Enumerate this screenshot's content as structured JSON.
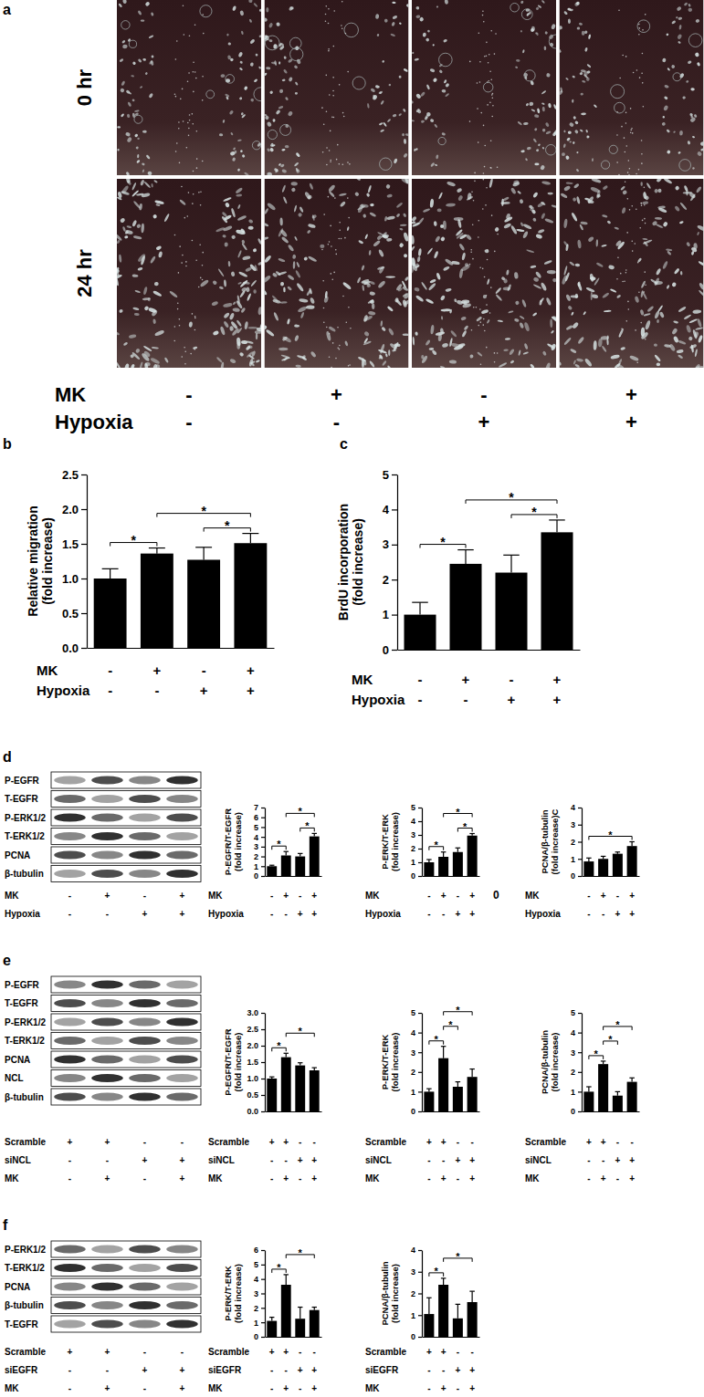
{
  "panel_labels": [
    "a",
    "b",
    "c",
    "d",
    "e",
    "f"
  ],
  "micrographs": {
    "rows": [
      "0 hr",
      "24 hr"
    ],
    "conditions": [
      {
        "name": "MK",
        "values": [
          "-",
          "+",
          "-",
          "+"
        ]
      },
      {
        "name": "Hypoxia",
        "values": [
          "-",
          "-",
          "+",
          "+"
        ]
      }
    ]
  },
  "blots": [
    {
      "rows": [
        "P-EGFR",
        "T-EGFR",
        "P-ERK1/2",
        "T-ERK1/2",
        "PCNA",
        "β-tubulin"
      ],
      "conditions": [
        {
          "name": "MK",
          "values": [
            "-",
            "+",
            "-",
            "+"
          ]
        },
        {
          "name": "Hypoxia",
          "values": [
            "-",
            "-",
            "+",
            "+"
          ]
        }
      ]
    },
    {
      "rows": [
        "P-EGFR",
        "T-EGFR",
        "P-ERK1/2",
        "T-ERK1/2",
        "PCNA",
        "NCL",
        "β-tubulin"
      ],
      "conditions": [
        {
          "name": "Scramble",
          "values": [
            "+",
            "+",
            "-",
            "-"
          ]
        },
        {
          "name": "siNCL",
          "values": [
            "-",
            "-",
            "+",
            "+"
          ]
        },
        {
          "name": "MK",
          "values": [
            "-",
            "+",
            "-",
            "+"
          ]
        }
      ]
    },
    {
      "rows": [
        "P-ERK1/2",
        "T-ERK1/2",
        "PCNA",
        "β-tubulin",
        "T-EGFR"
      ],
      "conditions": [
        {
          "name": "Scramble",
          "values": [
            "+",
            "+",
            "-",
            "-"
          ]
        },
        {
          "name": "siEGFR",
          "values": [
            "-",
            "-",
            "+",
            "+"
          ]
        },
        {
          "name": "MK",
          "values": [
            "-",
            "+",
            "-",
            "+"
          ]
        }
      ]
    }
  ],
  "chart_data": [
    {
      "type": "bar",
      "y_label": [
        "Relative migration",
        "(fold increase)"
      ],
      "categories": [
        null,
        null,
        null,
        null
      ],
      "values": [
        1.0,
        1.36,
        1.27,
        1.51
      ],
      "errors": [
        0.14,
        0.08,
        0.18,
        0.14
      ],
      "color": "#000000",
      "ylim": [
        0,
        2.5
      ],
      "yticks": [
        {
          "value": 0,
          "label": "0.0"
        },
        0.5,
        {
          "value": 1,
          "label": "1.0"
        },
        1.5,
        {
          "value": 2,
          "label": "2.0"
        },
        2.5
      ],
      "conditions": [
        {
          "name": "MK",
          "values": [
            "-",
            "+",
            "-",
            "+"
          ]
        },
        {
          "name": "Hypoxia",
          "values": [
            "-",
            "-",
            "+",
            "+"
          ]
        }
      ],
      "significance": [
        [
          0,
          1
        ],
        [
          1,
          3
        ],
        [
          2,
          3
        ]
      ],
      "significance_label": "*"
    },
    {
      "type": "bar",
      "y_label": [
        "BrdU incorporation",
        "(fold increase)"
      ],
      "categories": [
        null,
        null,
        null,
        null
      ],
      "values": [
        1.0,
        2.45,
        2.2,
        3.35
      ],
      "errors": [
        0.35,
        0.4,
        0.5,
        0.35
      ],
      "color": "#000000",
      "ylim": [
        0,
        5
      ],
      "yticks": [
        0,
        1,
        2,
        3,
        4,
        5
      ],
      "conditions": [
        {
          "name": "MK",
          "values": [
            "-",
            "+",
            "-",
            "+"
          ]
        },
        {
          "name": "Hypoxia",
          "values": [
            "-",
            "-",
            "+",
            "+"
          ]
        }
      ],
      "significance": [
        [
          0,
          1
        ],
        [
          1,
          3
        ],
        [
          2,
          3
        ]
      ],
      "significance_label": "*"
    },
    {
      "type": "bar",
      "y_label": [
        "P-EGFR/T-EGFR",
        "(fold increase)"
      ],
      "categories": [
        null,
        null,
        null,
        null
      ],
      "values": [
        1.0,
        2.1,
        2.0,
        4.05
      ],
      "errors": [
        0.1,
        0.4,
        0.3,
        0.3
      ],
      "color": "#000000",
      "ylim": [
        0,
        7
      ],
      "yticks": [
        0,
        1,
        2,
        3,
        4,
        5,
        6,
        7
      ],
      "conditions": [
        {
          "name": "MK",
          "values": [
            "-",
            "+",
            "-",
            "+"
          ]
        },
        {
          "name": "Hypoxia",
          "values": [
            "-",
            "-",
            "+",
            "+"
          ]
        }
      ],
      "significance": [
        [
          0,
          1
        ],
        [
          1,
          3
        ],
        [
          2,
          3
        ]
      ],
      "significance_label": "*"
    },
    {
      "type": "bar",
      "y_label": [
        "P-ERK/T-ERK",
        "(fold increase)"
      ],
      "categories": [
        null,
        null,
        null,
        null
      ],
      "values": [
        1.0,
        1.4,
        1.75,
        2.95
      ],
      "errors": [
        0.2,
        0.35,
        0.3,
        0.15
      ],
      "color": "#000000",
      "ylim": [
        0,
        5
      ],
      "yticks": [
        0,
        1,
        2,
        3,
        4,
        5
      ],
      "conditions": [
        {
          "name": "MK",
          "values": [
            "-",
            "+",
            "-",
            "+"
          ]
        },
        {
          "name": "Hypoxia",
          "values": [
            "-",
            "-",
            "+",
            "+"
          ]
        }
      ],
      "significance": [
        [
          0,
          1
        ],
        [
          1,
          3
        ],
        [
          2,
          3
        ]
      ],
      "significance_label": "*",
      "annotations": [
        "0"
      ]
    },
    {
      "type": "bar",
      "y_label": [
        "PCNA/β-tubulin",
        "(fold increase)C"
      ],
      "categories": [
        null,
        null,
        null,
        null
      ],
      "values": [
        0.85,
        1.0,
        1.3,
        1.75
      ],
      "errors": [
        0.2,
        0.15,
        0.1,
        0.25
      ],
      "color": "#000000",
      "ylim": [
        0,
        4
      ],
      "yticks": [
        0,
        1,
        2,
        3,
        4
      ],
      "conditions": [
        {
          "name": "MK",
          "values": [
            "-",
            "+",
            "-",
            "+"
          ]
        },
        {
          "name": "Hypoxia",
          "values": [
            "-",
            "-",
            "+",
            "+"
          ]
        }
      ],
      "significance": [
        [
          0,
          3
        ]
      ],
      "significance_label": "*"
    },
    {
      "type": "bar",
      "y_label": [
        "P-EGFR/T-EGFR",
        "(fold increase)"
      ],
      "categories": [
        null,
        null,
        null,
        null
      ],
      "values": [
        1.0,
        1.65,
        1.4,
        1.25
      ],
      "errors": [
        0.05,
        0.12,
        0.08,
        0.08
      ],
      "color": "#000000",
      "ylim": [
        0,
        3
      ],
      "yticks": [
        {
          "value": 0,
          "label": "0.0"
        },
        0.5,
        {
          "value": 1,
          "label": "1.0"
        },
        1.5,
        {
          "value": 2,
          "label": "2.0"
        },
        2.5,
        {
          "value": 3,
          "label": "3.0"
        }
      ],
      "conditions": [
        {
          "name": "Scramble",
          "values": [
            "+",
            "+",
            "-",
            "-"
          ]
        },
        {
          "name": "siNCL",
          "values": [
            "-",
            "-",
            "+",
            "+"
          ]
        },
        {
          "name": "MK",
          "values": [
            "-",
            "+",
            "-",
            "+"
          ]
        }
      ],
      "significance": [
        [
          0,
          1
        ],
        [
          1,
          3
        ]
      ],
      "significance_label": "*"
    },
    {
      "type": "bar",
      "y_label": [
        "P-ERK/T-ERK",
        "(fold increase)"
      ],
      "categories": [
        null,
        null,
        null,
        null
      ],
      "values": [
        1.0,
        2.7,
        1.25,
        1.75
      ],
      "errors": [
        0.15,
        0.6,
        0.25,
        0.4
      ],
      "color": "#000000",
      "ylim": [
        0,
        5
      ],
      "yticks": [
        0,
        1,
        2,
        3,
        4,
        5
      ],
      "conditions": [
        {
          "name": "Scramble",
          "values": [
            "+",
            "+",
            "-",
            "-"
          ]
        },
        {
          "name": "siNCL",
          "values": [
            "-",
            "-",
            "+",
            "+"
          ]
        },
        {
          "name": "MK",
          "values": [
            "-",
            "+",
            "-",
            "+"
          ]
        }
      ],
      "significance": [
        [
          0,
          1
        ],
        [
          1,
          2
        ],
        [
          1,
          3
        ]
      ],
      "significance_label": "*"
    },
    {
      "type": "bar",
      "y_label": [
        "PCNA/β-tubulin",
        "(fold increase)"
      ],
      "categories": [
        null,
        null,
        null,
        null
      ],
      "values": [
        1.0,
        2.4,
        0.8,
        1.5
      ],
      "errors": [
        0.25,
        0.15,
        0.2,
        0.2
      ],
      "color": "#000000",
      "ylim": [
        0,
        5
      ],
      "yticks": [
        0,
        1,
        2,
        3,
        4,
        5
      ],
      "conditions": [
        {
          "name": "Scramble",
          "values": [
            "+",
            "+",
            "-",
            "-"
          ]
        },
        {
          "name": "siNCL",
          "values": [
            "-",
            "-",
            "+",
            "+"
          ]
        },
        {
          "name": "MK",
          "values": [
            "-",
            "+",
            "-",
            "+"
          ]
        }
      ],
      "significance": [
        [
          0,
          1
        ],
        [
          1,
          2
        ],
        [
          1,
          3
        ]
      ],
      "significance_label": "*"
    },
    {
      "type": "bar",
      "y_label": [
        "P-ERK/T-ERK",
        "(fold increase)"
      ],
      "categories": [
        null,
        null,
        null,
        null
      ],
      "values": [
        1.1,
        3.6,
        1.25,
        1.85
      ],
      "errors": [
        0.25,
        0.7,
        0.8,
        0.2
      ],
      "color": "#000000",
      "ylim": [
        0,
        6
      ],
      "yticks": [
        0,
        1,
        2,
        3,
        4,
        5,
        6
      ],
      "conditions": [
        {
          "name": "Scramble",
          "values": [
            "+",
            "+",
            "-",
            "-"
          ]
        },
        {
          "name": "siEGFR",
          "values": [
            "-",
            "-",
            "+",
            "+"
          ]
        },
        {
          "name": "MK",
          "values": [
            "-",
            "+",
            "-",
            "+"
          ]
        }
      ],
      "significance": [
        [
          0,
          1
        ],
        [
          1,
          3
        ]
      ],
      "significance_label": "*"
    },
    {
      "type": "bar",
      "y_label": [
        "PCNA/β-tubulin",
        "(fold increase)"
      ],
      "categories": [
        null,
        null,
        null,
        null
      ],
      "values": [
        1.05,
        2.4,
        0.85,
        1.6
      ],
      "errors": [
        0.75,
        0.3,
        0.65,
        0.5
      ],
      "color": "#000000",
      "ylim": [
        0,
        4
      ],
      "yticks": [
        0,
        1,
        2,
        3,
        4
      ],
      "conditions": [
        {
          "name": "Scramble",
          "values": [
            "+",
            "+",
            "-",
            "-"
          ]
        },
        {
          "name": "siEGFR",
          "values": [
            "-",
            "-",
            "+",
            "+"
          ]
        },
        {
          "name": "MK",
          "values": [
            "-",
            "+",
            "-",
            "+"
          ]
        }
      ],
      "significance": [
        [
          0,
          1
        ],
        [
          1,
          3
        ]
      ],
      "significance_label": "*"
    }
  ]
}
